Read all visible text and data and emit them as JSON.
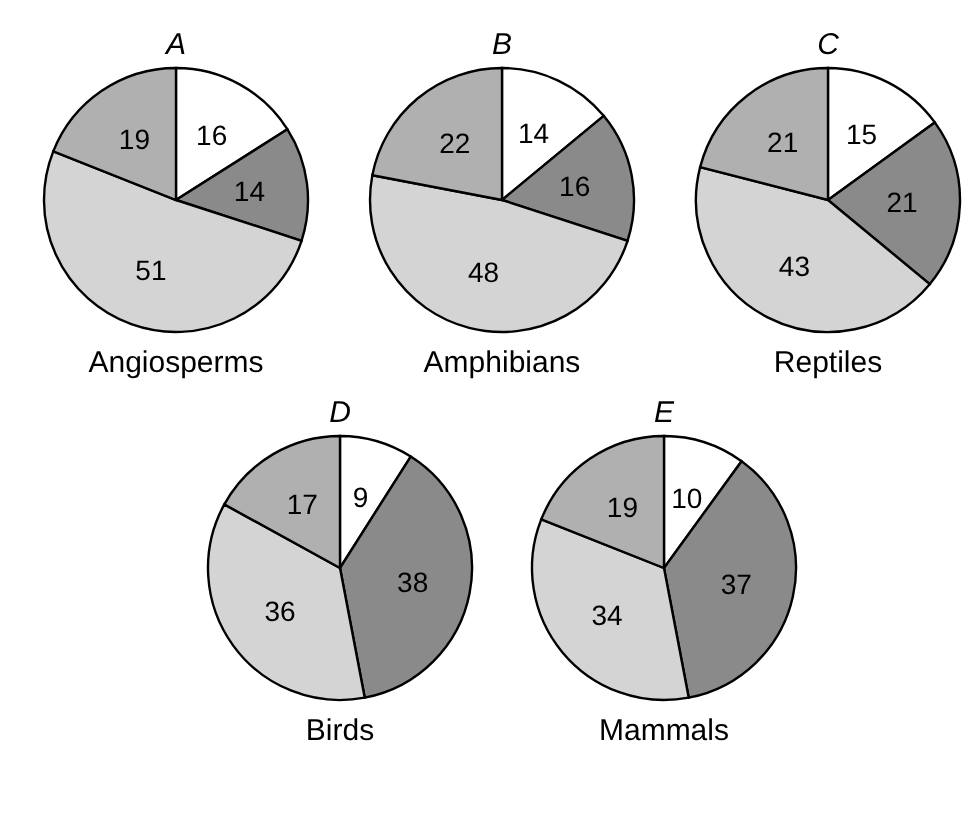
{
  "chart_data": [
    {
      "type": "pie",
      "title": "A",
      "xlabel": "Angiosperms",
      "categories": [
        null,
        null,
        null,
        null
      ],
      "values": [
        16,
        14,
        51,
        19
      ],
      "colors": [
        "#ffffff",
        "#8a8a8a",
        "#d4d4d4",
        "#b0b0b0"
      ],
      "data_labels": true
    },
    {
      "type": "pie",
      "title": "B",
      "xlabel": "Amphibians",
      "categories": [
        null,
        null,
        null,
        null
      ],
      "values": [
        14,
        16,
        48,
        22
      ],
      "colors": [
        "#ffffff",
        "#8a8a8a",
        "#d4d4d4",
        "#b0b0b0"
      ],
      "data_labels": true
    },
    {
      "type": "pie",
      "title": "C",
      "xlabel": "Reptiles",
      "categories": [
        null,
        null,
        null,
        null
      ],
      "values": [
        15,
        21,
        43,
        21
      ],
      "colors": [
        "#ffffff",
        "#8a8a8a",
        "#d4d4d4",
        "#b0b0b0"
      ],
      "data_labels": true
    },
    {
      "type": "pie",
      "title": "D",
      "xlabel": "Birds",
      "categories": [
        null,
        null,
        null,
        null
      ],
      "values": [
        9,
        38,
        36,
        17
      ],
      "colors": [
        "#ffffff",
        "#8a8a8a",
        "#d4d4d4",
        "#b0b0b0"
      ],
      "data_labels": true
    },
    {
      "type": "pie",
      "title": "E",
      "xlabel": "Mammals",
      "categories": [
        null,
        null,
        null,
        null
      ],
      "values": [
        10,
        37,
        34,
        19
      ],
      "colors": [
        "#ffffff",
        "#8a8a8a",
        "#d4d4d4",
        "#b0b0b0"
      ],
      "data_labels": true
    }
  ]
}
